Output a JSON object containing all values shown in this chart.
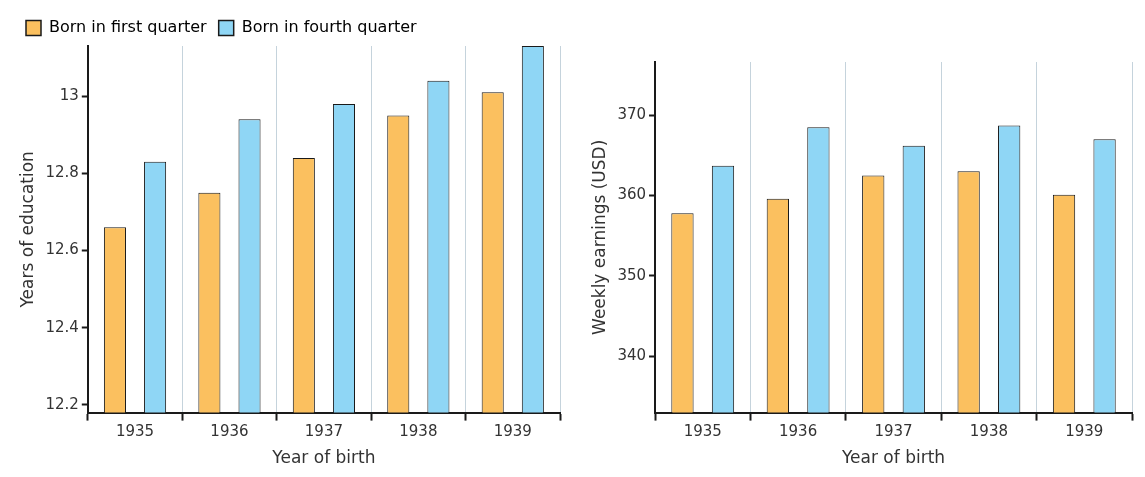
{
  "chart_data": [
    {
      "type": "bar",
      "categories": [
        "1935",
        "1936",
        "1937",
        "1938",
        "1939"
      ],
      "xlabel": "Year of birth",
      "ylabel": "Years of education",
      "series": [
        {
          "name": "Born in first quarter",
          "color": "#fbc05f",
          "values": [
            12.66,
            12.75,
            12.84,
            12.95,
            13.01
          ]
        },
        {
          "name": "Born in fourth quarter",
          "color": "#8fd6f5",
          "values": [
            12.83,
            12.94,
            12.98,
            13.04,
            13.13
          ]
        }
      ],
      "ylim": [
        12.18,
        13.13
      ],
      "yticks": [
        12.2,
        12.4,
        12.6,
        12.8,
        13
      ],
      "grid": "x",
      "legend": "top left"
    },
    {
      "type": "bar",
      "categories": [
        "1935",
        "1936",
        "1937",
        "1938",
        "1939"
      ],
      "xlabel": "Year of birth",
      "ylabel": "Weekly earnings (USD)",
      "series": [
        {
          "color": "#fbc05f",
          "values": [
            357.8,
            359.6,
            362.5,
            363.0,
            360.1
          ]
        },
        {
          "color": "#8fd6f5",
          "values": [
            363.7,
            368.5,
            366.2,
            368.7,
            367.0
          ]
        }
      ],
      "ylim": [
        333,
        376.6
      ],
      "yticks": [
        340,
        350,
        360,
        370
      ],
      "grid": "x"
    }
  ]
}
